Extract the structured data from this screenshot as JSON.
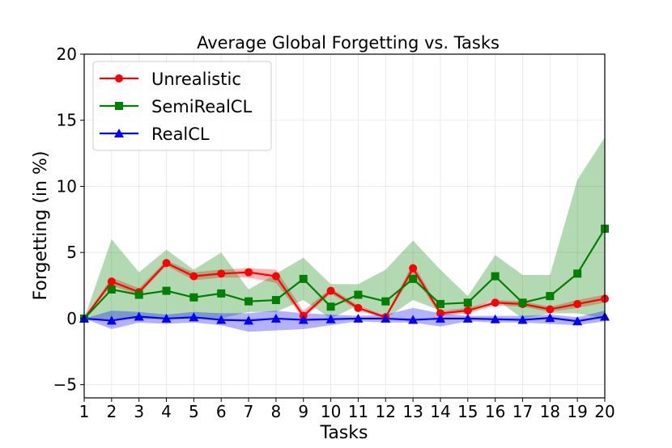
{
  "chart_data": {
    "type": "line",
    "title": "Average Global Forgetting vs. Tasks",
    "xlabel": "Tasks",
    "ylabel": "Forgetting (in %)",
    "xlim": [
      1,
      20
    ],
    "ylim": [
      -6,
      20
    ],
    "x": [
      1,
      2,
      3,
      4,
      5,
      6,
      7,
      8,
      9,
      10,
      11,
      12,
      13,
      14,
      15,
      16,
      17,
      18,
      19,
      20
    ],
    "yticks": [
      -5,
      0,
      5,
      10,
      15,
      20
    ],
    "grid": true,
    "legend_position": "upper-left",
    "series": [
      {
        "name": "Unrealistic",
        "color": "#ff0000",
        "marker": "circle",
        "values": [
          0,
          2.8,
          2.0,
          4.2,
          3.2,
          3.4,
          3.5,
          3.2,
          0.2,
          2.1,
          0.8,
          0.1,
          3.8,
          0.4,
          0.6,
          1.2,
          1.1,
          0.7,
          1.1,
          1.5
        ],
        "lower": [
          0,
          2.5,
          1.8,
          4.0,
          2.9,
          3.1,
          3.1,
          2.7,
          0.0,
          1.9,
          0.6,
          0.0,
          3.4,
          0.2,
          0.4,
          1.0,
          0.9,
          0.5,
          0.8,
          1.2
        ],
        "upper": [
          0,
          3.1,
          2.3,
          4.4,
          3.5,
          3.7,
          3.8,
          3.7,
          0.6,
          2.3,
          1.0,
          0.2,
          4.2,
          0.6,
          0.8,
          1.4,
          1.3,
          0.9,
          1.4,
          1.8
        ]
      },
      {
        "name": "SemiRealCL",
        "color": "#008000",
        "marker": "square",
        "values": [
          0,
          2.2,
          1.8,
          2.1,
          1.6,
          1.9,
          1.3,
          1.4,
          3.0,
          0.9,
          1.8,
          1.3,
          3.0,
          1.1,
          1.2,
          3.2,
          1.2,
          1.7,
          3.4,
          6.8
        ],
        "lower": [
          0,
          0.0,
          0.0,
          0.0,
          0.0,
          0.0,
          0.5,
          0.5,
          1.4,
          0.0,
          1.0,
          0.0,
          1.4,
          0.6,
          0.6,
          1.5,
          0.0,
          0.4,
          0.4,
          0.0
        ],
        "upper": [
          0,
          6.0,
          3.5,
          5.2,
          3.7,
          5.0,
          2.2,
          3.4,
          4.6,
          2.6,
          2.6,
          3.7,
          5.9,
          3.7,
          1.7,
          4.8,
          3.3,
          3.3,
          10.5,
          13.7
        ]
      },
      {
        "name": "RealCL",
        "color": "#0000ff",
        "marker": "triangle",
        "values": [
          0,
          -0.15,
          0.15,
          0.0,
          0.1,
          -0.1,
          -0.15,
          0.0,
          -0.1,
          -0.05,
          0.0,
          0.0,
          -0.1,
          0.0,
          0.0,
          -0.05,
          -0.1,
          0.05,
          -0.2,
          0.15
        ],
        "lower": [
          0,
          -0.8,
          -0.3,
          -0.4,
          -0.3,
          -0.5,
          -1.0,
          -0.9,
          -0.8,
          -0.5,
          -0.2,
          -0.3,
          -0.3,
          -0.6,
          -0.2,
          -0.3,
          -0.3,
          -0.4,
          -0.5,
          -0.2
        ],
        "upper": [
          0,
          0.6,
          0.5,
          0.3,
          0.5,
          0.4,
          0.4,
          0.6,
          0.4,
          0.3,
          0.2,
          0.3,
          0.8,
          0.4,
          0.2,
          0.2,
          0.2,
          0.3,
          0.1,
          0.6
        ]
      }
    ]
  }
}
